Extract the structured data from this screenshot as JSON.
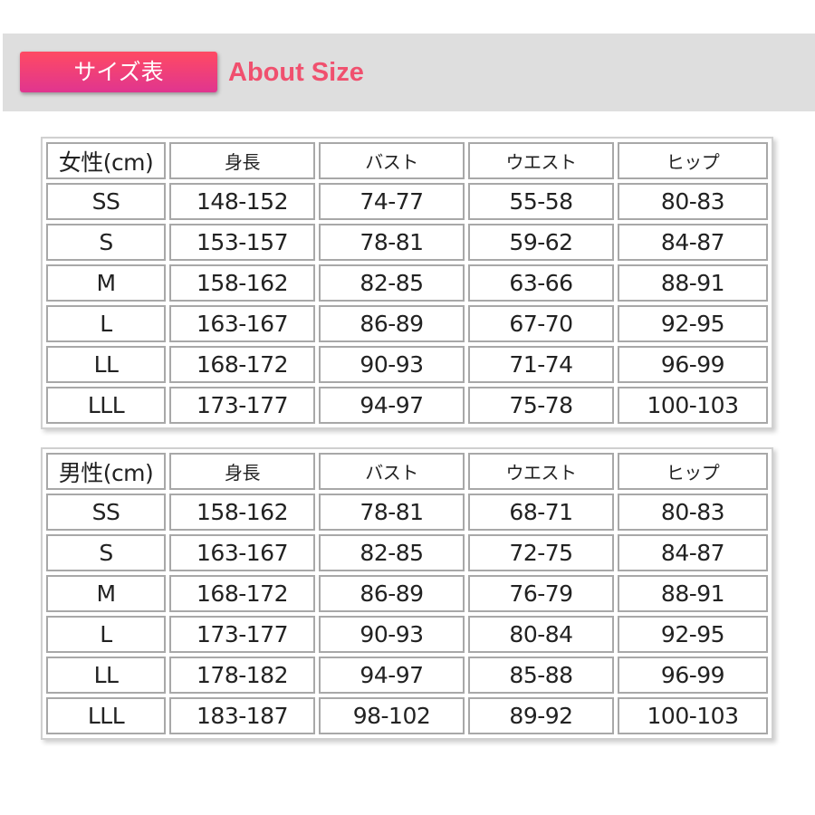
{
  "header": {
    "tag": "サイズ表",
    "title": "About Size",
    "accent": "#f0506e"
  },
  "tables": [
    {
      "name": "women",
      "columns": [
        "女性(cm)",
        "身長",
        "バスト",
        "ウエスト",
        "ヒップ"
      ],
      "rows": [
        [
          "SS",
          "148-152",
          "74-77",
          "55-58",
          "80-83"
        ],
        [
          "S",
          "153-157",
          "78-81",
          "59-62",
          "84-87"
        ],
        [
          "M",
          "158-162",
          "82-85",
          "63-66",
          "88-91"
        ],
        [
          "L",
          "163-167",
          "86-89",
          "67-70",
          "92-95"
        ],
        [
          "LL",
          "168-172",
          "90-93",
          "71-74",
          "96-99"
        ],
        [
          "LLL",
          "173-177",
          "94-97",
          "75-78",
          "100-103"
        ]
      ]
    },
    {
      "name": "men",
      "columns": [
        "男性(cm)",
        "身長",
        "バスト",
        "ウエスト",
        "ヒップ"
      ],
      "rows": [
        [
          "SS",
          "158-162",
          "78-81",
          "68-71",
          "80-83"
        ],
        [
          "S",
          "163-167",
          "82-85",
          "72-75",
          "84-87"
        ],
        [
          "M",
          "168-172",
          "86-89",
          "76-79",
          "88-91"
        ],
        [
          "L",
          "173-177",
          "90-93",
          "80-84",
          "92-95"
        ],
        [
          "LL",
          "178-182",
          "94-97",
          "85-88",
          "96-99"
        ],
        [
          "LLL",
          "183-187",
          "98-102",
          "89-92",
          "100-103"
        ]
      ]
    }
  ]
}
